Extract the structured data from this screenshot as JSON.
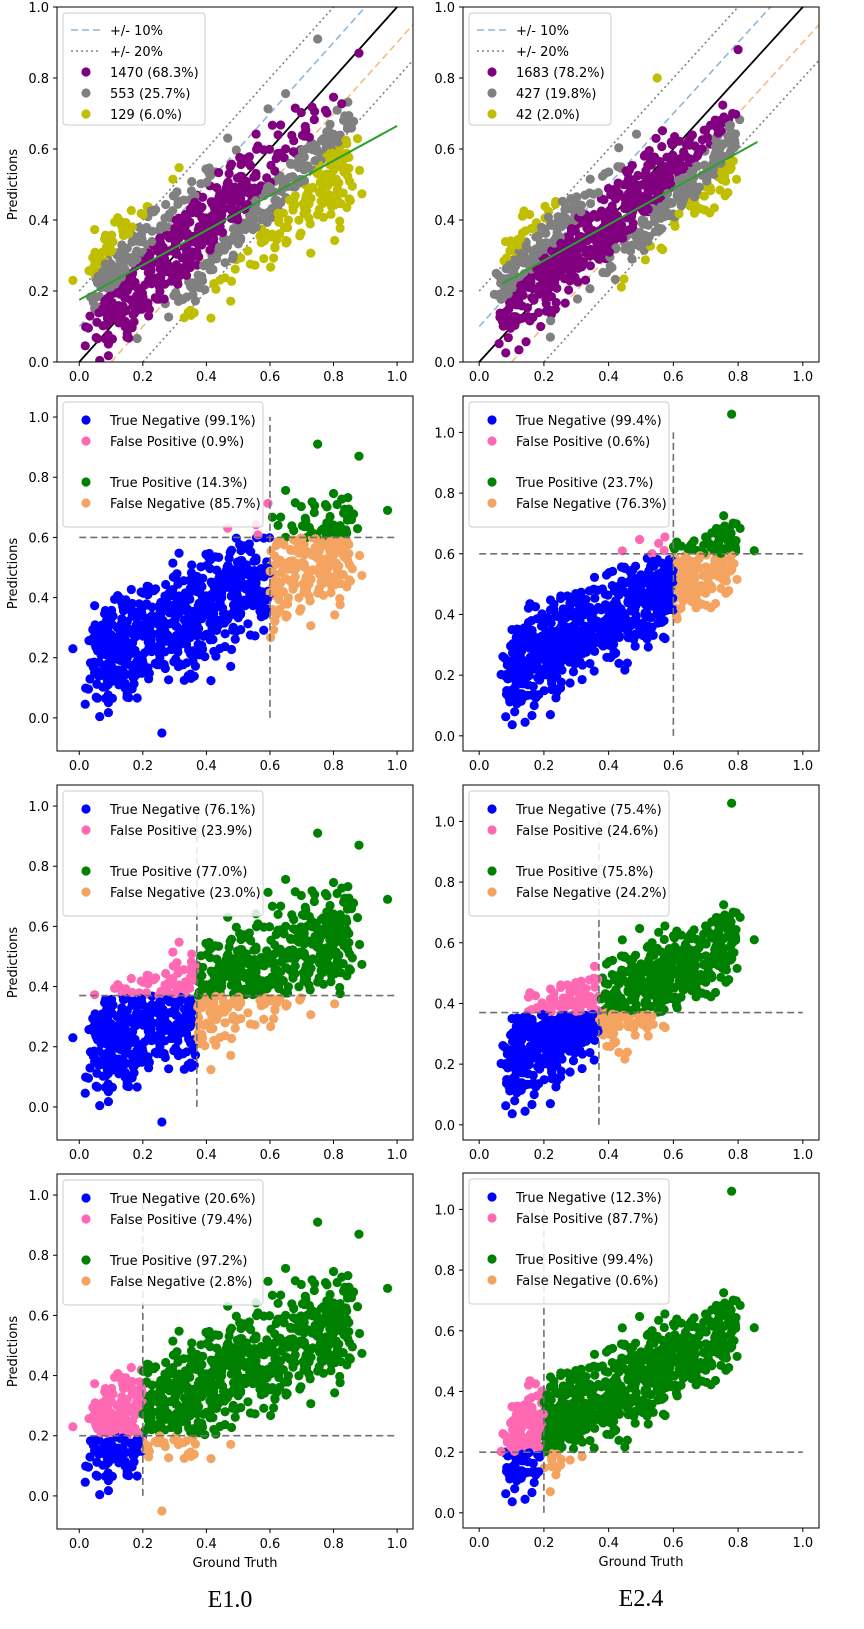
{
  "chart_data": [
    {
      "panel": "E1.0 accuracy",
      "type": "scatter",
      "xlabel": "",
      "ylabel": "Predictions",
      "xlim": [
        -0.07,
        1.05
      ],
      "ylim": [
        0,
        1.0
      ],
      "xticks": [
        "0.0",
        "0.2",
        "0.4",
        "0.6",
        "0.8",
        "1.0"
      ],
      "yticks": [
        "0.0",
        "0.2",
        "0.4",
        "0.6",
        "0.8",
        "1.0"
      ],
      "legend_position": "top-left",
      "legend": [
        {
          "label": "+/- 10%",
          "kind": "dashed",
          "color": "#8fb6d8"
        },
        {
          "label": "+/- 20%",
          "kind": "dotted",
          "color": "#808080"
        },
        {
          "label": "1470 (68.3%)",
          "kind": "marker",
          "color": "#800080"
        },
        {
          "label": "553 (25.7%)",
          "kind": "marker",
          "color": "#808080"
        },
        {
          "label": "129 (6.0%)",
          "kind": "marker",
          "color": "#bfbf00"
        }
      ],
      "fit_line": [
        [
          0.0,
          0.175
        ],
        [
          1.0,
          0.665
        ]
      ],
      "cloud": {
        "xmin": 0.05,
        "xmax": 0.95,
        "slope": 0.5,
        "intercept": 0.17,
        "spread": 0.09
      },
      "highlight_points": [
        [
          0.88,
          0.87
        ],
        [
          0.75,
          0.91
        ],
        [
          -0.02,
          0.23
        ],
        [
          0.26,
          -0.05
        ]
      ]
    },
    {
      "panel": "E2.4 accuracy",
      "type": "scatter",
      "xlabel": "",
      "ylabel": "",
      "xlim": [
        -0.05,
        1.05
      ],
      "ylim": [
        0,
        1.0
      ],
      "xticks": [
        "0.0",
        "0.2",
        "0.4",
        "0.6",
        "0.8",
        "1.0"
      ],
      "yticks": [
        "0.0",
        "0.2",
        "0.4",
        "0.6",
        "0.8",
        "1.0"
      ],
      "legend_position": "top-left",
      "legend": [
        {
          "label": "+/- 10%",
          "kind": "dashed",
          "color": "#8fb6d8"
        },
        {
          "label": "+/- 20%",
          "kind": "dotted",
          "color": "#808080"
        },
        {
          "label": "1683 (78.2%)",
          "kind": "marker",
          "color": "#800080"
        },
        {
          "label": "427 (19.8%)",
          "kind": "marker",
          "color": "#808080"
        },
        {
          "label": "42 (2.0%)",
          "kind": "marker",
          "color": "#bfbf00"
        }
      ],
      "fit_line": [
        [
          0.07,
          0.22
        ],
        [
          0.86,
          0.62
        ]
      ],
      "cloud": {
        "xmin": 0.08,
        "xmax": 0.86,
        "slope": 0.55,
        "intercept": 0.17,
        "spread": 0.07
      },
      "highlight_points": [
        [
          0.8,
          0.88
        ],
        [
          0.55,
          0.8
        ],
        [
          0.19,
          0.1
        ],
        [
          0.22,
          0.07
        ]
      ]
    },
    {
      "panel": "E1.0 threshold 0.6",
      "type": "scatter",
      "ylabel": "Predictions",
      "xlim": [
        -0.07,
        1.05
      ],
      "ylim": [
        -0.11,
        1.07
      ],
      "xticks": [
        "0.0",
        "0.2",
        "0.4",
        "0.6",
        "0.8",
        "1.0"
      ],
      "yticks": [
        "0.0",
        "0.2",
        "0.4",
        "0.6",
        "0.8",
        "1.0"
      ],
      "threshold": 0.6,
      "legend_position": "top-left",
      "legend": [
        {
          "label": "True Negative (99.1%)",
          "color": "#0000ff"
        },
        {
          "label": "False Positive (0.9%)",
          "color": "#ff69b4"
        },
        {
          "label": "True Positive (14.3%)",
          "color": "#008000"
        },
        {
          "label": "False Negative (85.7%)",
          "color": "#f4a460"
        }
      ],
      "cloud": {
        "xmin": 0.05,
        "xmax": 0.95,
        "slope": 0.5,
        "intercept": 0.17,
        "spread": 0.09
      },
      "highlight_points": [
        [
          0.88,
          0.87
        ],
        [
          0.75,
          0.91
        ],
        [
          -0.02,
          0.23
        ],
        [
          0.26,
          -0.05
        ],
        [
          0.97,
          0.69
        ]
      ]
    },
    {
      "panel": "E2.4 threshold 0.6",
      "type": "scatter",
      "ylabel": "",
      "xlim": [
        -0.05,
        1.05
      ],
      "ylim": [
        -0.05,
        1.12
      ],
      "xticks": [
        "0.0",
        "0.2",
        "0.4",
        "0.6",
        "0.8",
        "1.0"
      ],
      "yticks": [
        "0.0",
        "0.2",
        "0.4",
        "0.6",
        "0.8",
        "1.0"
      ],
      "threshold": 0.6,
      "legend_position": "top-left",
      "legend": [
        {
          "label": "True Negative (99.4%)",
          "color": "#0000ff"
        },
        {
          "label": "False Positive (0.6%)",
          "color": "#ff69b4"
        },
        {
          "label": "True Positive (23.7%)",
          "color": "#008000"
        },
        {
          "label": "False Negative (76.3%)",
          "color": "#f4a460"
        }
      ],
      "cloud": {
        "xmin": 0.1,
        "xmax": 0.86,
        "slope": 0.55,
        "intercept": 0.17,
        "spread": 0.07
      },
      "highlight_points": [
        [
          0.78,
          1.06
        ],
        [
          0.85,
          0.61
        ],
        [
          0.22,
          0.07
        ],
        [
          0.17,
          0.1
        ]
      ]
    },
    {
      "panel": "E1.0 threshold 0.37",
      "type": "scatter",
      "ylabel": "Predictions",
      "xlim": [
        -0.07,
        1.05
      ],
      "ylim": [
        -0.11,
        1.07
      ],
      "xticks": [
        "0.0",
        "0.2",
        "0.4",
        "0.6",
        "0.8",
        "1.0"
      ],
      "yticks": [
        "0.0",
        "0.2",
        "0.4",
        "0.6",
        "0.8",
        "1.0"
      ],
      "threshold": 0.37,
      "legend_position": "top-left",
      "legend": [
        {
          "label": "True Negative (76.1%)",
          "color": "#0000ff"
        },
        {
          "label": "False Positive (23.9%)",
          "color": "#ff69b4"
        },
        {
          "label": "True Positive (77.0%)",
          "color": "#008000"
        },
        {
          "label": "False Negative (23.0%)",
          "color": "#f4a460"
        }
      ],
      "cloud": {
        "xmin": 0.05,
        "xmax": 0.95,
        "slope": 0.5,
        "intercept": 0.17,
        "spread": 0.09
      },
      "highlight_points": [
        [
          0.88,
          0.87
        ],
        [
          0.75,
          0.91
        ],
        [
          -0.02,
          0.23
        ],
        [
          0.26,
          -0.05
        ],
        [
          0.97,
          0.69
        ]
      ]
    },
    {
      "panel": "E2.4 threshold 0.37",
      "type": "scatter",
      "ylabel": "",
      "xlim": [
        -0.05,
        1.05
      ],
      "ylim": [
        -0.05,
        1.12
      ],
      "xticks": [
        "0.0",
        "0.2",
        "0.4",
        "0.6",
        "0.8",
        "1.0"
      ],
      "yticks": [
        "0.0",
        "0.2",
        "0.4",
        "0.6",
        "0.8",
        "1.0"
      ],
      "threshold": 0.37,
      "legend_position": "top-left",
      "legend": [
        {
          "label": "True Negative (75.4%)",
          "color": "#0000ff"
        },
        {
          "label": "False Positive (24.6%)",
          "color": "#ff69b4"
        },
        {
          "label": "True Positive (75.8%)",
          "color": "#008000"
        },
        {
          "label": "False Negative (24.2%)",
          "color": "#f4a460"
        }
      ],
      "cloud": {
        "xmin": 0.1,
        "xmax": 0.86,
        "slope": 0.55,
        "intercept": 0.17,
        "spread": 0.07
      },
      "highlight_points": [
        [
          0.78,
          1.06
        ],
        [
          0.85,
          0.61
        ],
        [
          0.22,
          0.07
        ],
        [
          0.17,
          0.1
        ]
      ]
    },
    {
      "panel": "E1.0 threshold 0.2",
      "type": "scatter",
      "xlabel": "Ground Truth",
      "ylabel": "Predictions",
      "xlim": [
        -0.07,
        1.05
      ],
      "ylim": [
        -0.11,
        1.07
      ],
      "xticks": [
        "0.0",
        "0.2",
        "0.4",
        "0.6",
        "0.8",
        "1.0"
      ],
      "yticks": [
        "0.0",
        "0.2",
        "0.4",
        "0.6",
        "0.8",
        "1.0"
      ],
      "threshold": 0.2,
      "legend_position": "top-left",
      "legend": [
        {
          "label": "True Negative (20.6%)",
          "color": "#0000ff"
        },
        {
          "label": "False Positive (79.4%)",
          "color": "#ff69b4"
        },
        {
          "label": "True Positive (97.2%)",
          "color": "#008000"
        },
        {
          "label": "False Negative (2.8%)",
          "color": "#f4a460"
        }
      ],
      "cloud": {
        "xmin": 0.05,
        "xmax": 0.95,
        "slope": 0.5,
        "intercept": 0.17,
        "spread": 0.09
      },
      "highlight_points": [
        [
          0.88,
          0.87
        ],
        [
          0.75,
          0.91
        ],
        [
          -0.02,
          0.23
        ],
        [
          0.26,
          -0.05
        ],
        [
          0.97,
          0.69
        ]
      ]
    },
    {
      "panel": "E2.4 threshold 0.2",
      "type": "scatter",
      "xlabel": "Ground Truth",
      "ylabel": "",
      "xlim": [
        -0.05,
        1.05
      ],
      "ylim": [
        -0.05,
        1.12
      ],
      "xticks": [
        "0.0",
        "0.2",
        "0.4",
        "0.6",
        "0.8",
        "1.0"
      ],
      "yticks": [
        "0.0",
        "0.2",
        "0.4",
        "0.6",
        "0.8",
        "1.0"
      ],
      "threshold": 0.2,
      "legend_position": "top-left",
      "legend": [
        {
          "label": "True Negative (12.3%)",
          "color": "#0000ff"
        },
        {
          "label": "False Positive (87.7%)",
          "color": "#ff69b4"
        },
        {
          "label": "True Positive (99.4%)",
          "color": "#008000"
        },
        {
          "label": "False Negative (0.6%)",
          "color": "#f4a460"
        }
      ],
      "cloud": {
        "xmin": 0.1,
        "xmax": 0.86,
        "slope": 0.55,
        "intercept": 0.17,
        "spread": 0.07
      },
      "highlight_points": [
        [
          0.78,
          1.06
        ],
        [
          0.85,
          0.61
        ],
        [
          0.22,
          0.07
        ],
        [
          0.17,
          0.1
        ]
      ]
    }
  ],
  "columns": {
    "left": "E1.0",
    "right": "E2.4"
  }
}
